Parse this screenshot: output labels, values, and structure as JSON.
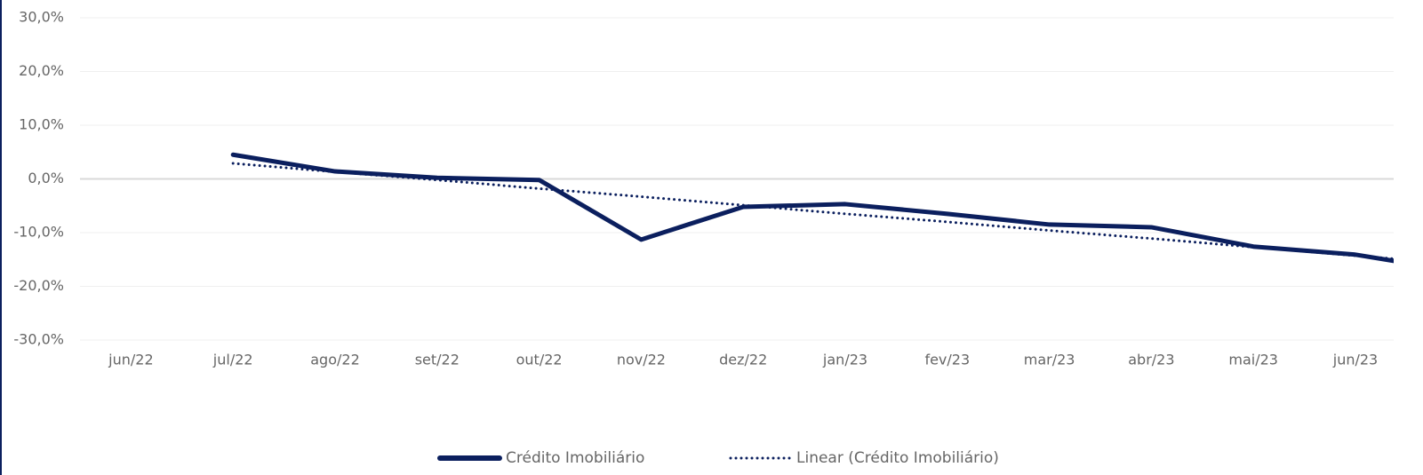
{
  "chart_data": {
    "type": "line",
    "categories": [
      "jun/22",
      "jul/22",
      "ago/22",
      "set/22",
      "out/22",
      "nov/22",
      "dez/22",
      "jan/23",
      "fev/23",
      "mar/23",
      "abr/23",
      "mai/23",
      "jun/23",
      null
    ],
    "series": [
      {
        "name": "Crédito Imobiliário",
        "color": "#0b1f5e",
        "style": "solid",
        "values": [
          null,
          4.5,
          1.4,
          0.2,
          -0.2,
          -11.3,
          -5.2,
          -4.7,
          -6.5,
          -8.5,
          -9.0,
          -12.6,
          -14.1,
          -17.2
        ]
      },
      {
        "name": "Linear (Crédito Imobiliário)",
        "color": "#0b1f5e",
        "style": "dotted",
        "values": [
          null,
          2.9,
          1.3,
          -0.2,
          -1.8,
          -3.3,
          -4.9,
          -6.5,
          -8.0,
          -9.6,
          -11.1,
          -12.7,
          -14.3,
          -15.8
        ]
      }
    ],
    "ylim": [
      -30,
      30
    ],
    "yticks": [
      {
        "value": 30,
        "label": "30,0%"
      },
      {
        "value": 20,
        "label": "20,0%"
      },
      {
        "value": 10,
        "label": "10,0%"
      },
      {
        "value": 0,
        "label": "0,0%"
      },
      {
        "value": -10,
        "label": "-10,0%"
      },
      {
        "value": -20,
        "label": "-20,0%"
      },
      {
        "value": -30,
        "label": "-30,0%"
      }
    ],
    "grid": true,
    "legend": "bottom"
  }
}
